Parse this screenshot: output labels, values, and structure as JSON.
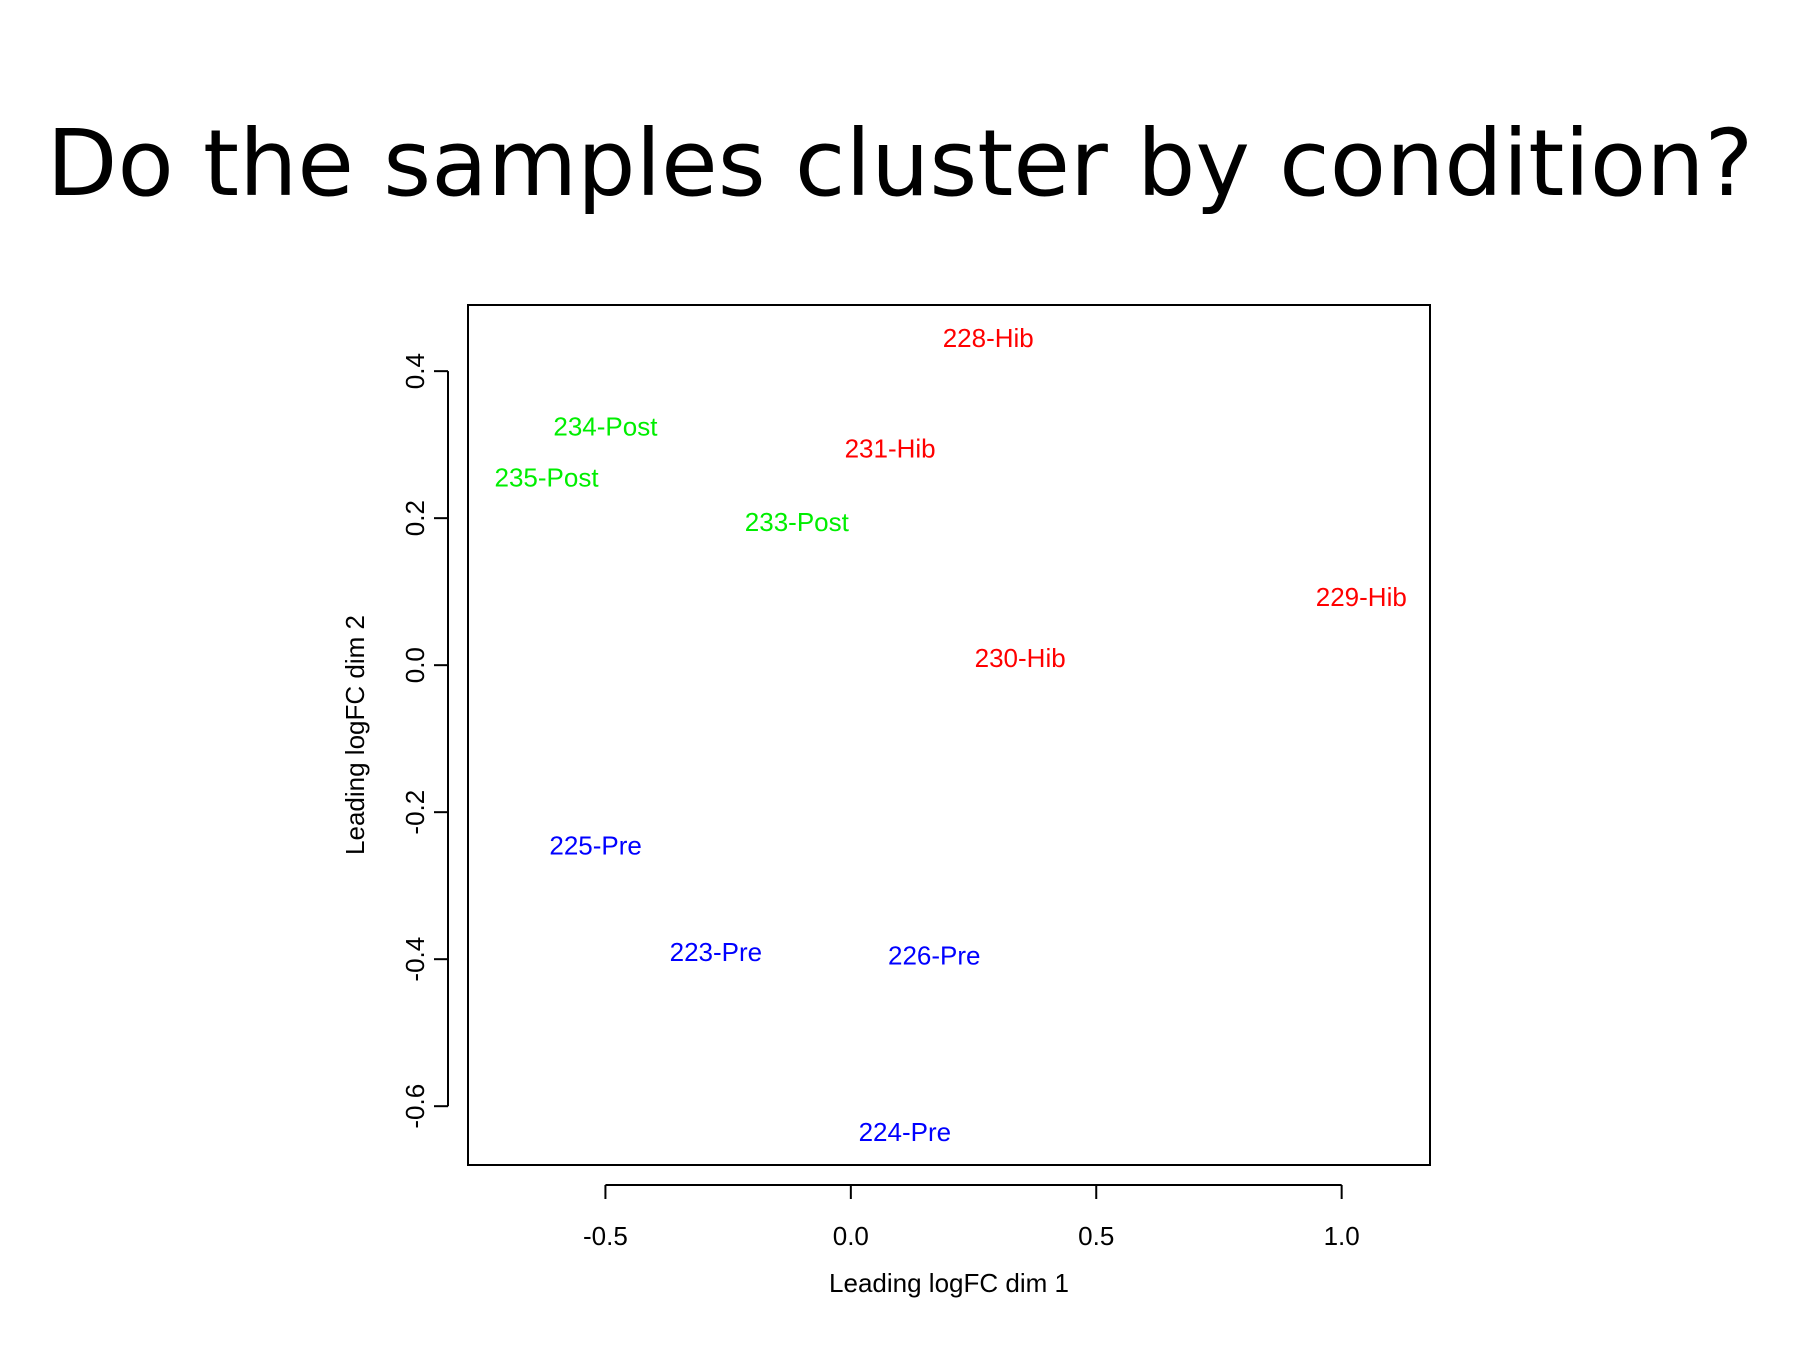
{
  "slide": {
    "title": "Do the samples cluster by condition?"
  },
  "chart_data": {
    "type": "scatter",
    "title": "",
    "xlabel": "Leading logFC dim 1",
    "ylabel": "Leading logFC dim 2",
    "xlim": [
      -0.78,
      1.18
    ],
    "ylim": [
      -0.68,
      0.49
    ],
    "x_ticks": [
      -0.5,
      0.0,
      0.5,
      1.0
    ],
    "x_tick_labels": [
      "-0.5",
      "0.0",
      "0.5",
      "1.0"
    ],
    "y_ticks": [
      -0.6,
      -0.4,
      -0.2,
      0.0,
      0.2,
      0.4
    ],
    "y_tick_labels": [
      "-0.6",
      "-0.4",
      "-0.2",
      "0.0",
      "0.2",
      "0.4"
    ],
    "grid": false,
    "legend": "none",
    "colors": {
      "Hib": "#ff0000",
      "Post": "#00ee00",
      "Pre": "#0000ff"
    },
    "points": [
      {
        "label": "228-Hib",
        "group": "Hib",
        "x": 0.28,
        "y": 0.445
      },
      {
        "label": "234-Post",
        "group": "Post",
        "x": -0.5,
        "y": 0.325
      },
      {
        "label": "231-Hib",
        "group": "Hib",
        "x": 0.08,
        "y": 0.295
      },
      {
        "label": "235-Post",
        "group": "Post",
        "x": -0.62,
        "y": 0.255
      },
      {
        "label": "233-Post",
        "group": "Post",
        "x": -0.11,
        "y": 0.195
      },
      {
        "label": "229-Hib",
        "group": "Hib",
        "x": 1.04,
        "y": 0.093
      },
      {
        "label": "230-Hib",
        "group": "Hib",
        "x": 0.345,
        "y": 0.01
      },
      {
        "label": "225-Pre",
        "group": "Pre",
        "x": -0.52,
        "y": -0.245
      },
      {
        "label": "223-Pre",
        "group": "Pre",
        "x": -0.275,
        "y": -0.39
      },
      {
        "label": "226-Pre",
        "group": "Pre",
        "x": 0.17,
        "y": -0.395
      },
      {
        "label": "224-Pre",
        "group": "Pre",
        "x": 0.11,
        "y": -0.635
      }
    ]
  }
}
